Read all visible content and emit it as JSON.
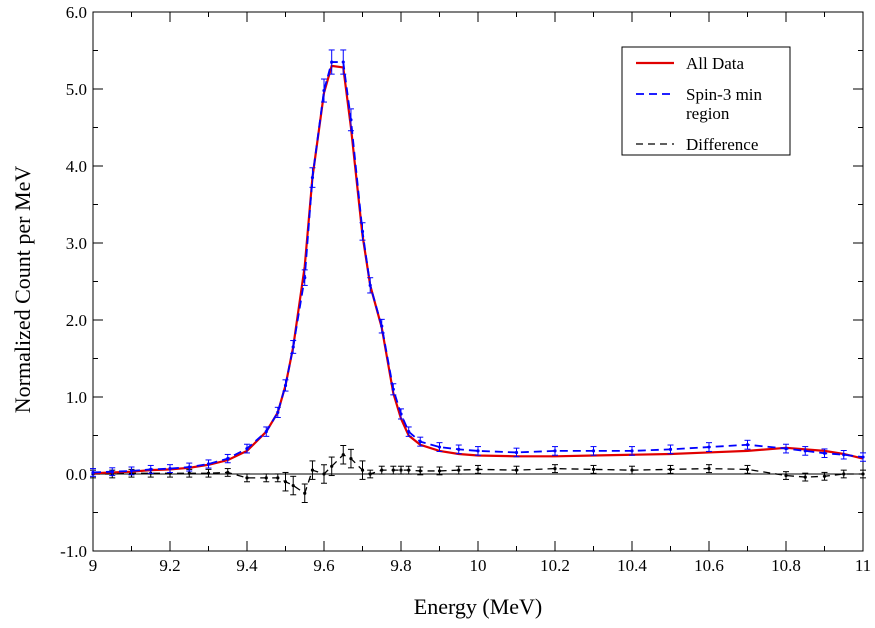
{
  "chart_data": {
    "type": "line",
    "title": "",
    "xlabel": "Energy (MeV)",
    "ylabel": "Normalized Count per MeV",
    "xlim": [
      9,
      11
    ],
    "ylim": [
      -1.0,
      6.0
    ],
    "x_ticks": [
      "9",
      "9.2",
      "9.4",
      "9.6",
      "9.8",
      "10",
      "10.2",
      "10.4",
      "10.6",
      "10.8",
      "11"
    ],
    "y_ticks": [
      "-1.0",
      "0.0",
      "1.0",
      "2.0",
      "3.0",
      "4.0",
      "5.0",
      "6.0"
    ],
    "grid": false,
    "legend_position": "top-right",
    "colors": {
      "all_data": "#e00000",
      "spin3": "#0000ff",
      "difference": "#000000"
    },
    "legend": [
      {
        "label_lines": [
          "All Data"
        ],
        "style": "solid-red"
      },
      {
        "label_lines": [
          "Spin-3 min",
          "region"
        ],
        "style": "dashed-blue"
      },
      {
        "label_lines": [
          "Difference"
        ],
        "style": "dashed-black"
      }
    ],
    "x": [
      9.0,
      9.05,
      9.1,
      9.15,
      9.2,
      9.25,
      9.3,
      9.35,
      9.4,
      9.45,
      9.48,
      9.5,
      9.52,
      9.55,
      9.57,
      9.6,
      9.62,
      9.65,
      9.67,
      9.7,
      9.72,
      9.75,
      9.78,
      9.8,
      9.82,
      9.85,
      9.9,
      9.95,
      10.0,
      10.1,
      10.2,
      10.3,
      10.4,
      10.5,
      10.6,
      10.7,
      10.8,
      10.85,
      10.9,
      10.95,
      11.0
    ],
    "series": [
      {
        "name": "All Data",
        "values": [
          0.01,
          0.02,
          0.03,
          0.05,
          0.06,
          0.08,
          0.12,
          0.18,
          0.3,
          0.55,
          0.8,
          1.15,
          1.65,
          2.7,
          3.85,
          4.95,
          5.3,
          5.28,
          4.5,
          3.1,
          2.45,
          1.9,
          1.05,
          0.72,
          0.5,
          0.38,
          0.3,
          0.26,
          0.24,
          0.23,
          0.23,
          0.24,
          0.25,
          0.26,
          0.28,
          0.3,
          0.34,
          0.32,
          0.3,
          0.26,
          0.2
        ]
      },
      {
        "name": "Spin-3 min region",
        "values": [
          0.02,
          0.03,
          0.04,
          0.06,
          0.07,
          0.09,
          0.13,
          0.2,
          0.33,
          0.55,
          0.8,
          1.15,
          1.65,
          2.55,
          3.85,
          4.98,
          5.35,
          5.35,
          4.6,
          3.15,
          2.45,
          1.92,
          1.1,
          0.78,
          0.55,
          0.42,
          0.35,
          0.32,
          0.3,
          0.28,
          0.3,
          0.3,
          0.3,
          0.32,
          0.35,
          0.38,
          0.33,
          0.3,
          0.27,
          0.25,
          0.22
        ]
      },
      {
        "name": "Difference",
        "values": [
          0.0,
          0.0,
          0.01,
          0.01,
          0.01,
          0.01,
          0.01,
          0.02,
          -0.05,
          -0.05,
          -0.05,
          -0.1,
          -0.15,
          -0.25,
          0.05,
          0.0,
          0.1,
          0.25,
          0.2,
          0.05,
          0.0,
          0.05,
          0.05,
          0.05,
          0.05,
          0.04,
          0.04,
          0.05,
          0.06,
          0.05,
          0.07,
          0.06,
          0.05,
          0.06,
          0.07,
          0.06,
          -0.02,
          -0.04,
          -0.03,
          0.0,
          0.0
        ]
      }
    ]
  }
}
